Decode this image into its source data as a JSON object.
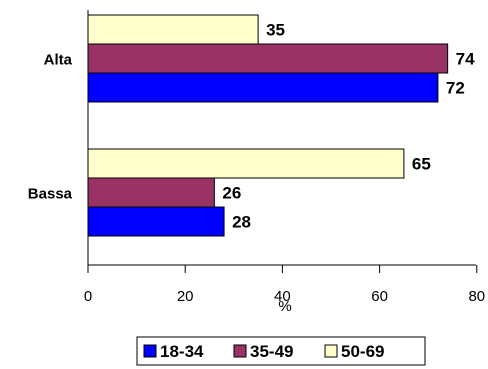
{
  "chart_data": {
    "type": "bar",
    "orientation": "horizontal",
    "categories": [
      "Alta",
      "Bassa"
    ],
    "series": [
      {
        "name": "18-34",
        "color": "#0000FF",
        "values": [
          72,
          28
        ]
      },
      {
        "name": "35-49",
        "color": "#993366",
        "values": [
          74,
          26
        ]
      },
      {
        "name": "50-69",
        "color": "#FFFFCC",
        "values": [
          35,
          65
        ]
      }
    ],
    "xlabel": "%",
    "xlim": [
      0,
      80
    ],
    "xticks": [
      0,
      20,
      40,
      60,
      80
    ],
    "grid": false,
    "legend_position": "bottom"
  }
}
